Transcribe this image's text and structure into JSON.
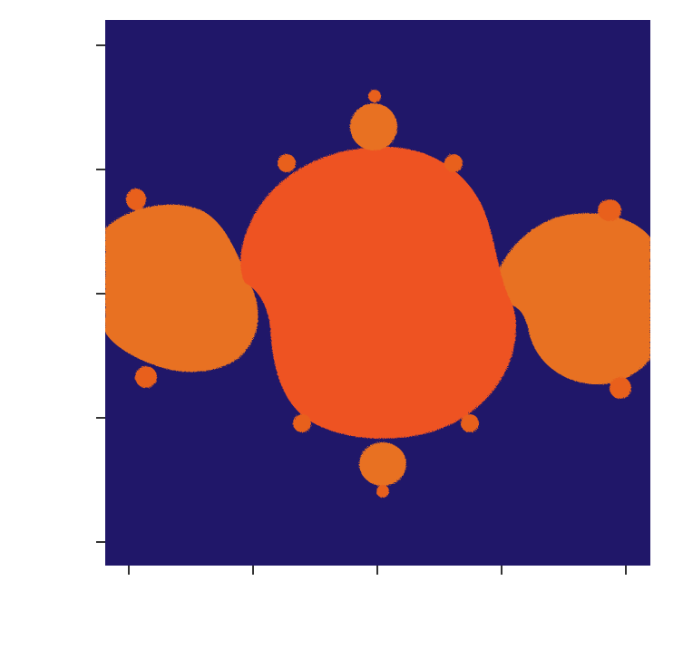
{
  "chart_data": {
    "type": "heatmap",
    "title": "",
    "xlabel": "",
    "ylabel": "",
    "grid": false,
    "legend": "none",
    "x_ticks": 5,
    "y_ticks": 5,
    "colors": {
      "background": "#201769",
      "central_bulb": "#ee5324",
      "side_lobes": "#e87124",
      "satellites": "#e8611f",
      "axis": "#333333"
    }
  }
}
